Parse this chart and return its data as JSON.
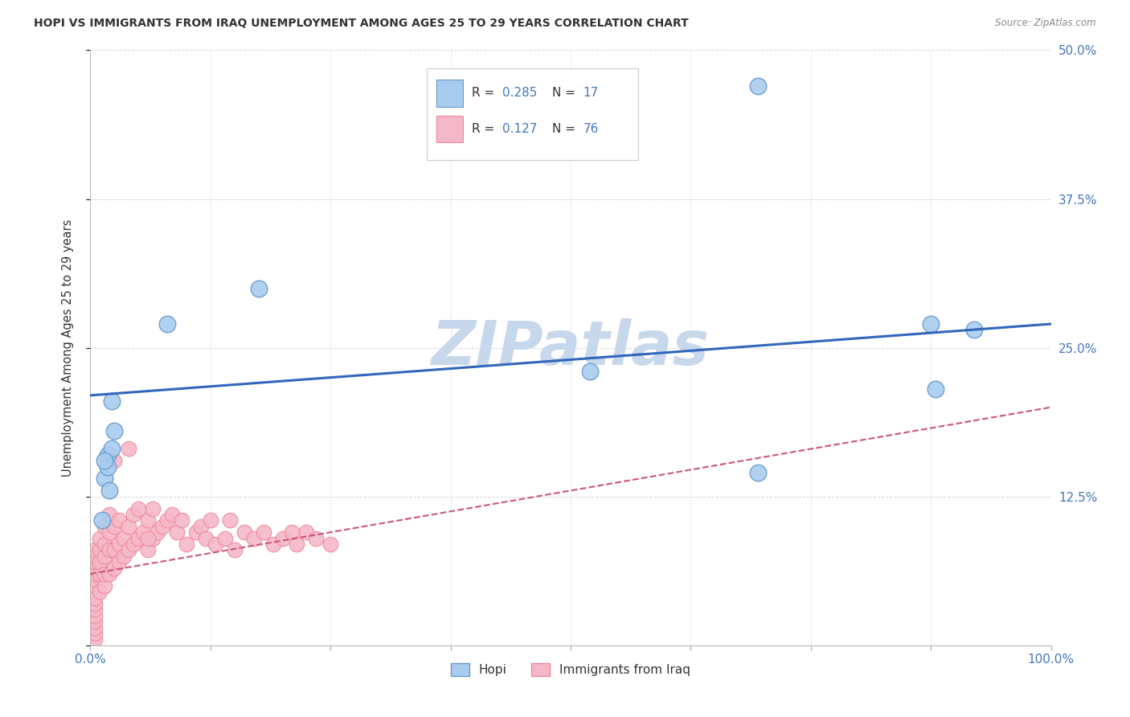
{
  "title": "HOPI VS IMMIGRANTS FROM IRAQ UNEMPLOYMENT AMONG AGES 25 TO 29 YEARS CORRELATION CHART",
  "source": "Source: ZipAtlas.com",
  "ylabel": "Unemployment Among Ages 25 to 29 years",
  "xlim": [
    0,
    1.0
  ],
  "ylim": [
    0,
    0.5
  ],
  "xticks": [
    0.0,
    0.125,
    0.25,
    0.375,
    0.5,
    0.625,
    0.75,
    0.875,
    1.0
  ],
  "xticklabels_show": {
    "0.0": "0.0%",
    "1.0": "100.0%"
  },
  "yticks": [
    0.0,
    0.125,
    0.25,
    0.375,
    0.5
  ],
  "yticklabels": [
    "",
    "12.5%",
    "25.0%",
    "37.5%",
    "50.0%"
  ],
  "hopi_color": "#A8CCEE",
  "iraq_color": "#F5B8C8",
  "hopi_edge": "#6699CC",
  "iraq_edge": "#EE8899",
  "trend_hopi_color": "#3366BB",
  "trend_iraq_color": "#CC5577",
  "trend_hopi_x0": 0.0,
  "trend_hopi_y0": 0.21,
  "trend_hopi_x1": 1.0,
  "trend_hopi_y1": 0.27,
  "trend_iraq_x0": 0.0,
  "trend_iraq_y0": 0.06,
  "trend_iraq_x1": 1.0,
  "trend_iraq_y1": 0.2,
  "watermark": "ZIPatlas",
  "watermark_color": "#C8D8EC",
  "legend_r1": "0.285",
  "legend_n1": "17",
  "legend_r2": "0.127",
  "legend_n2": "76",
  "hopi_x": [
    0.022,
    0.08,
    0.175,
    0.52,
    0.695,
    0.875,
    0.92,
    0.88,
    0.695,
    0.025,
    0.018,
    0.015,
    0.022,
    0.018,
    0.02,
    0.012,
    0.015
  ],
  "hopi_y": [
    0.205,
    0.27,
    0.3,
    0.23,
    0.47,
    0.27,
    0.265,
    0.215,
    0.145,
    0.18,
    0.16,
    0.14,
    0.165,
    0.15,
    0.13,
    0.105,
    0.155
  ],
  "iraq_x": [
    0.005,
    0.005,
    0.005,
    0.005,
    0.005,
    0.005,
    0.005,
    0.005,
    0.005,
    0.005,
    0.005,
    0.005,
    0.005,
    0.005,
    0.005,
    0.01,
    0.01,
    0.01,
    0.01,
    0.01,
    0.015,
    0.015,
    0.015,
    0.015,
    0.015,
    0.02,
    0.02,
    0.02,
    0.02,
    0.025,
    0.025,
    0.025,
    0.03,
    0.03,
    0.03,
    0.035,
    0.035,
    0.04,
    0.04,
    0.045,
    0.045,
    0.05,
    0.05,
    0.055,
    0.06,
    0.06,
    0.065,
    0.065,
    0.07,
    0.075,
    0.08,
    0.085,
    0.09,
    0.095,
    0.1,
    0.11,
    0.115,
    0.12,
    0.125,
    0.13,
    0.14,
    0.145,
    0.15,
    0.16,
    0.17,
    0.18,
    0.19,
    0.2,
    0.21,
    0.215,
    0.225,
    0.235,
    0.25,
    0.025,
    0.04,
    0.06
  ],
  "iraq_y": [
    0.005,
    0.01,
    0.015,
    0.02,
    0.025,
    0.03,
    0.035,
    0.04,
    0.05,
    0.055,
    0.06,
    0.065,
    0.07,
    0.075,
    0.08,
    0.045,
    0.06,
    0.07,
    0.08,
    0.09,
    0.05,
    0.06,
    0.075,
    0.085,
    0.1,
    0.06,
    0.08,
    0.095,
    0.11,
    0.065,
    0.08,
    0.1,
    0.07,
    0.085,
    0.105,
    0.075,
    0.09,
    0.08,
    0.1,
    0.085,
    0.11,
    0.09,
    0.115,
    0.095,
    0.08,
    0.105,
    0.09,
    0.115,
    0.095,
    0.1,
    0.105,
    0.11,
    0.095,
    0.105,
    0.085,
    0.095,
    0.1,
    0.09,
    0.105,
    0.085,
    0.09,
    0.105,
    0.08,
    0.095,
    0.09,
    0.095,
    0.085,
    0.09,
    0.095,
    0.085,
    0.095,
    0.09,
    0.085,
    0.155,
    0.165,
    0.09
  ]
}
